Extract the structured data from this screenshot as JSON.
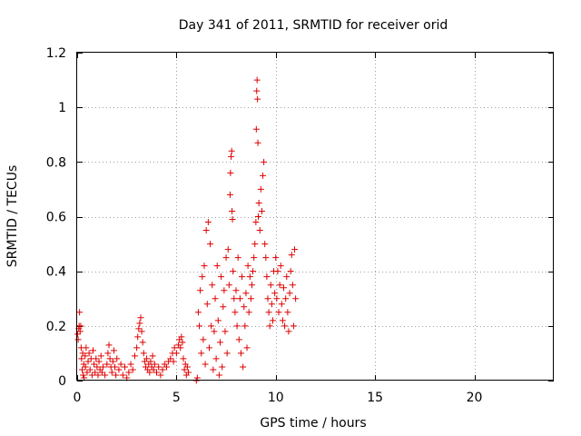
{
  "chart_data": {
    "type": "scatter",
    "title": "Day 341 of 2011, SRMTID for receiver orid",
    "xlabel": "GPS time / hours",
    "ylabel": "SRMTID / TECUs",
    "xlim": [
      0,
      24
    ],
    "ylim": [
      0,
      1.2
    ],
    "xticks": [
      0,
      5,
      10,
      15,
      20
    ],
    "yticks": [
      0,
      0.2,
      0.4,
      0.6,
      0.8,
      1,
      1.2
    ],
    "xtick_labels": [
      "0",
      "5",
      "10",
      "15",
      "20"
    ],
    "ytick_labels": [
      "0",
      "0.2",
      "0.4",
      "0.6",
      "0.8",
      "1",
      "1.2"
    ],
    "grid": true,
    "marker": "+",
    "color": "#e00000",
    "series": [
      {
        "name": "SRMTID",
        "points": [
          [
            0.02,
            0.17
          ],
          [
            0.05,
            0.15
          ],
          [
            0.08,
            0.19
          ],
          [
            0.1,
            0.2
          ],
          [
            0.12,
            0.25
          ],
          [
            0.15,
            0.18
          ],
          [
            0.18,
            0.2
          ],
          [
            0.2,
            0.12
          ],
          [
            0.22,
            0.08
          ],
          [
            0.25,
            0.04
          ],
          [
            0.28,
            0.1
          ],
          [
            0.3,
            0.02
          ],
          [
            0.33,
            0.06
          ],
          [
            0.35,
            0.01
          ],
          [
            0.4,
            0.09
          ],
          [
            0.42,
            0.05
          ],
          [
            0.45,
            0.12
          ],
          [
            0.5,
            0.03
          ],
          [
            0.55,
            0.07
          ],
          [
            0.6,
            0.1
          ],
          [
            0.65,
            0.04
          ],
          [
            0.7,
            0.08
          ],
          [
            0.75,
            0.02
          ],
          [
            0.8,
            0.11
          ],
          [
            0.85,
            0.06
          ],
          [
            0.9,
            0.03
          ],
          [
            0.95,
            0.08
          ],
          [
            1.0,
            0.05
          ],
          [
            1.05,
            0.02
          ],
          [
            1.1,
            0.07
          ],
          [
            1.15,
            0.04
          ],
          [
            1.2,
            0.09
          ],
          [
            1.25,
            0.03
          ],
          [
            1.3,
            0.05
          ],
          [
            1.4,
            0.02
          ],
          [
            1.5,
            0.06
          ],
          [
            1.55,
            0.1
          ],
          [
            1.6,
            0.13
          ],
          [
            1.65,
            0.08
          ],
          [
            1.7,
            0.05
          ],
          [
            1.75,
            0.03
          ],
          [
            1.8,
            0.07
          ],
          [
            1.85,
            0.11
          ],
          [
            1.9,
            0.05
          ],
          [
            1.95,
            0.02
          ],
          [
            2.0,
            0.08
          ],
          [
            2.1,
            0.04
          ],
          [
            2.2,
            0.06
          ],
          [
            2.3,
            0.02
          ],
          [
            2.4,
            0.05
          ],
          [
            2.5,
            0.01
          ],
          [
            2.6,
            0.03
          ],
          [
            2.7,
            0.06
          ],
          [
            2.8,
            0.04
          ],
          [
            2.9,
            0.09
          ],
          [
            3.0,
            0.12
          ],
          [
            3.05,
            0.16
          ],
          [
            3.1,
            0.19
          ],
          [
            3.15,
            0.21
          ],
          [
            3.2,
            0.23
          ],
          [
            3.25,
            0.18
          ],
          [
            3.3,
            0.14
          ],
          [
            3.35,
            0.1
          ],
          [
            3.4,
            0.07
          ],
          [
            3.45,
            0.05
          ],
          [
            3.5,
            0.08
          ],
          [
            3.55,
            0.04
          ],
          [
            3.6,
            0.06
          ],
          [
            3.65,
            0.03
          ],
          [
            3.7,
            0.07
          ],
          [
            3.75,
            0.05
          ],
          [
            3.8,
            0.09
          ],
          [
            3.85,
            0.04
          ],
          [
            3.9,
            0.06
          ],
          [
            4.0,
            0.03
          ],
          [
            4.1,
            0.05
          ],
          [
            4.2,
            0.02
          ],
          [
            4.3,
            0.04
          ],
          [
            4.4,
            0.06
          ],
          [
            4.5,
            0.05
          ],
          [
            4.6,
            0.07
          ],
          [
            4.7,
            0.08
          ],
          [
            4.8,
            0.1
          ],
          [
            4.85,
            0.07
          ],
          [
            4.9,
            0.12
          ],
          [
            5.0,
            0.1
          ],
          [
            5.1,
            0.13
          ],
          [
            5.15,
            0.15
          ],
          [
            5.2,
            0.12
          ],
          [
            5.25,
            0.16
          ],
          [
            5.3,
            0.14
          ],
          [
            5.35,
            0.08
          ],
          [
            5.4,
            0.04
          ],
          [
            5.45,
            0.06
          ],
          [
            5.5,
            0.02
          ],
          [
            5.55,
            0.05
          ],
          [
            5.6,
            0.03
          ],
          [
            6.0,
            0.0
          ],
          [
            6.05,
            0.01
          ],
          [
            6.1,
            0.25
          ],
          [
            6.15,
            0.2
          ],
          [
            6.2,
            0.33
          ],
          [
            6.25,
            0.1
          ],
          [
            6.3,
            0.38
          ],
          [
            6.35,
            0.15
          ],
          [
            6.4,
            0.42
          ],
          [
            6.45,
            0.06
          ],
          [
            6.5,
            0.55
          ],
          [
            6.55,
            0.28
          ],
          [
            6.6,
            0.58
          ],
          [
            6.65,
            0.12
          ],
          [
            6.7,
            0.5
          ],
          [
            6.75,
            0.2
          ],
          [
            6.8,
            0.35
          ],
          [
            6.85,
            0.04
          ],
          [
            6.9,
            0.18
          ],
          [
            6.95,
            0.3
          ],
          [
            7.0,
            0.08
          ],
          [
            7.05,
            0.42
          ],
          [
            7.1,
            0.22
          ],
          [
            7.15,
            0.02
          ],
          [
            7.2,
            0.14
          ],
          [
            7.25,
            0.38
          ],
          [
            7.3,
            0.05
          ],
          [
            7.35,
            0.27
          ],
          [
            7.4,
            0.33
          ],
          [
            7.45,
            0.18
          ],
          [
            7.5,
            0.45
          ],
          [
            7.55,
            0.1
          ],
          [
            7.6,
            0.48
          ],
          [
            7.65,
            0.35
          ],
          [
            7.7,
            0.68
          ],
          [
            7.72,
            0.76
          ],
          [
            7.75,
            0.82
          ],
          [
            7.78,
            0.84
          ],
          [
            7.8,
            0.62
          ],
          [
            7.82,
            0.59
          ],
          [
            7.85,
            0.4
          ],
          [
            7.9,
            0.3
          ],
          [
            7.95,
            0.25
          ],
          [
            8.0,
            0.33
          ],
          [
            8.05,
            0.2
          ],
          [
            8.1,
            0.45
          ],
          [
            8.15,
            0.15
          ],
          [
            8.2,
            0.3
          ],
          [
            8.25,
            0.1
          ],
          [
            8.3,
            0.38
          ],
          [
            8.35,
            0.05
          ],
          [
            8.4,
            0.27
          ],
          [
            8.45,
            0.2
          ],
          [
            8.5,
            0.32
          ],
          [
            8.55,
            0.12
          ],
          [
            8.6,
            0.42
          ],
          [
            8.65,
            0.25
          ],
          [
            8.7,
            0.38
          ],
          [
            8.75,
            0.3
          ],
          [
            8.8,
            0.35
          ],
          [
            8.85,
            0.4
          ],
          [
            8.9,
            0.45
          ],
          [
            8.95,
            0.5
          ],
          [
            9.0,
            0.58
          ],
          [
            9.02,
            0.92
          ],
          [
            9.04,
            1.06
          ],
          [
            9.06,
            1.1
          ],
          [
            9.08,
            1.03
          ],
          [
            9.1,
            0.87
          ],
          [
            9.12,
            0.6
          ],
          [
            9.15,
            0.65
          ],
          [
            9.2,
            0.55
          ],
          [
            9.25,
            0.7
          ],
          [
            9.3,
            0.62
          ],
          [
            9.35,
            0.75
          ],
          [
            9.4,
            0.8
          ],
          [
            9.45,
            0.5
          ],
          [
            9.5,
            0.45
          ],
          [
            9.55,
            0.38
          ],
          [
            9.6,
            0.3
          ],
          [
            9.65,
            0.25
          ],
          [
            9.7,
            0.2
          ],
          [
            9.75,
            0.35
          ],
          [
            9.8,
            0.28
          ],
          [
            9.85,
            0.22
          ],
          [
            9.9,
            0.4
          ],
          [
            9.95,
            0.32
          ],
          [
            10.0,
            0.45
          ],
          [
            10.05,
            0.3
          ],
          [
            10.1,
            0.4
          ],
          [
            10.15,
            0.25
          ],
          [
            10.2,
            0.35
          ],
          [
            10.25,
            0.42
          ],
          [
            10.3,
            0.28
          ],
          [
            10.35,
            0.22
          ],
          [
            10.4,
            0.34
          ],
          [
            10.45,
            0.2
          ],
          [
            10.5,
            0.3
          ],
          [
            10.55,
            0.38
          ],
          [
            10.6,
            0.25
          ],
          [
            10.65,
            0.18
          ],
          [
            10.7,
            0.32
          ],
          [
            10.75,
            0.4
          ],
          [
            10.8,
            0.46
          ],
          [
            10.85,
            0.35
          ],
          [
            10.9,
            0.2
          ],
          [
            10.95,
            0.48
          ],
          [
            11.0,
            0.3
          ]
        ]
      }
    ]
  }
}
